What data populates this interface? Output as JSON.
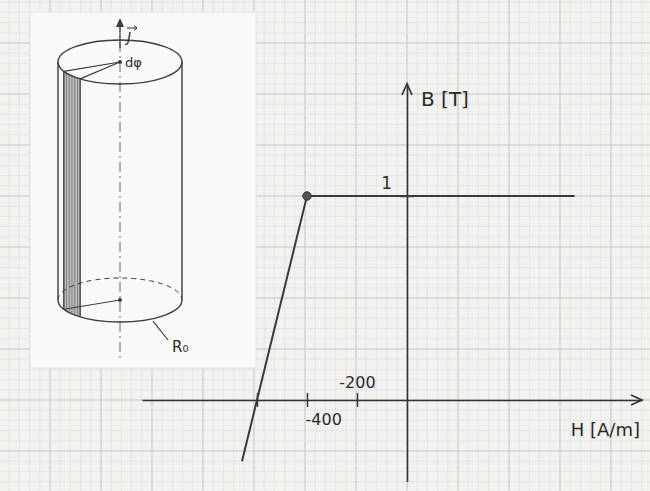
{
  "chart_data": {
    "type": "line",
    "x": [
      -660,
      -400,
      670
    ],
    "series": [
      {
        "values": [
          -0.3,
          1,
          1
        ],
        "color": "#3a3a3a",
        "line_style": "solid"
      },
      {
        "type": "scatter",
        "values": [
          null,
          1,
          null
        ],
        "color": "#555555",
        "marker": "circle"
      }
    ],
    "x_label": "H [A/m]",
    "y_label": "B [T]",
    "xlim": [
      -1060,
      940
    ],
    "ylim": [
      -0.4,
      1.55
    ],
    "xticks": [
      {
        "value": -600,
        "label": null
      },
      -400,
      -200
    ],
    "yticks": [
      1
    ]
  },
  "inset": {
    "vector_label": "J",
    "angle_label": "dφ",
    "radius_label": "R₀"
  }
}
